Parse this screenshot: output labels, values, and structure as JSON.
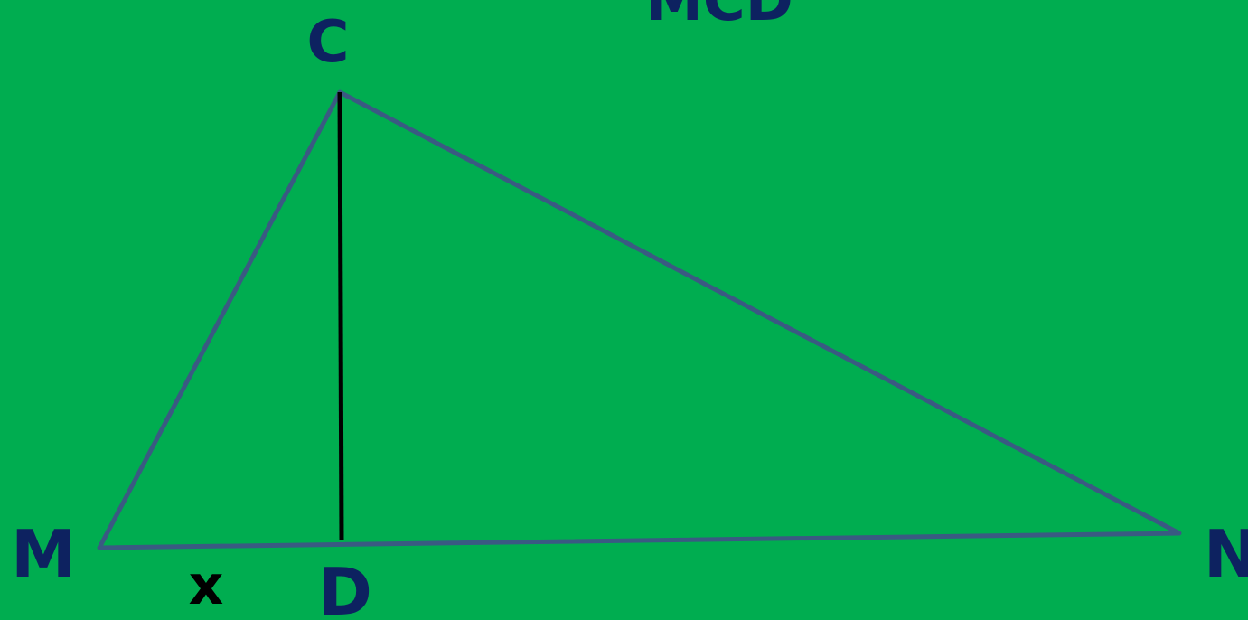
{
  "colors": {
    "background": "#00AD50",
    "triangle_stroke": "#3A5A82",
    "altitude_stroke": "#000000",
    "vertex_label": "#0D2260",
    "segment_label": "#000000"
  },
  "title": "MCD",
  "vertices": {
    "C": "C",
    "M": "M",
    "N": "N",
    "D": "D"
  },
  "segment_label": "x"
}
